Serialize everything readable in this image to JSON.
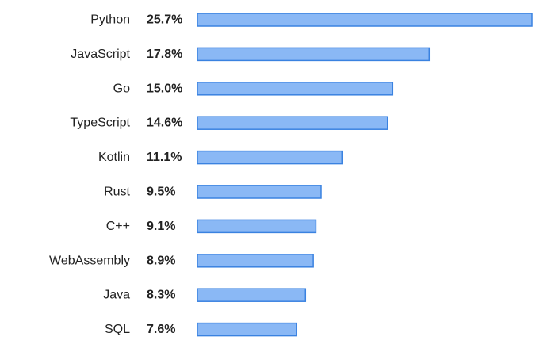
{
  "chart_data": {
    "type": "bar",
    "orientation": "horizontal",
    "categories": [
      "Python",
      "JavaScript",
      "Go",
      "TypeScript",
      "Kotlin",
      "Rust",
      "C++",
      "WebAssembly",
      "Java",
      "SQL"
    ],
    "values": [
      25.7,
      17.8,
      15.0,
      14.6,
      11.1,
      9.5,
      9.1,
      8.9,
      8.3,
      7.6
    ],
    "value_labels": [
      "25.7%",
      "17.8%",
      "15.0%",
      "14.6%",
      "11.1%",
      "9.5%",
      "9.1%",
      "8.9%",
      "8.3%",
      "7.6%"
    ],
    "title": "",
    "xlabel": "",
    "ylabel": "",
    "xlim": [
      0,
      25.7
    ],
    "grid": false,
    "legend": "none",
    "colors": {
      "bar_fill": "#8ab8f5",
      "bar_stroke": "#3a82e0",
      "text": "#222222"
    }
  }
}
